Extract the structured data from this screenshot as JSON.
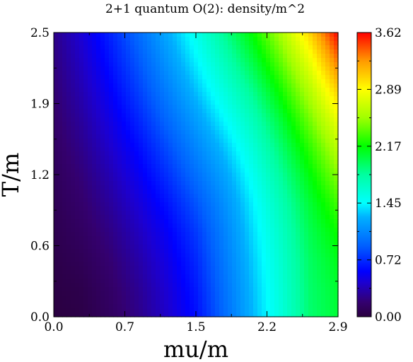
{
  "chart_data": {
    "type": "heatmap",
    "title": "2+1 quantum O(2): density/m^2",
    "xlabel": "mu/m",
    "ylabel": "T/m",
    "xlim": [
      0.0,
      2.9
    ],
    "ylim": [
      0.0,
      2.5
    ],
    "x_ticks": [
      "0.0",
      "0.7",
      "1.5",
      "2.2",
      "2.9"
    ],
    "y_ticks": [
      "0.0",
      "0.6",
      "1.2",
      "1.9",
      "2.5"
    ],
    "colorbar": {
      "range": [
        0.0,
        3.62
      ],
      "ticks": [
        "0.00",
        "0.72",
        "1.45",
        "2.17",
        "2.89",
        "3.62"
      ]
    },
    "x": [
      0.0,
      0.29,
      0.58,
      0.87,
      1.16,
      1.45,
      1.74,
      2.03,
      2.32,
      2.61,
      2.9
    ],
    "y": [
      0.0,
      0.25,
      0.5,
      0.75,
      1.0,
      1.25,
      1.5,
      1.75,
      2.0,
      2.25,
      2.5
    ],
    "z": [
      [
        0.0,
        0.03,
        0.12,
        0.25,
        0.42,
        0.62,
        0.95,
        1.28,
        1.58,
        1.92,
        2.05
      ],
      [
        0.02,
        0.05,
        0.15,
        0.28,
        0.45,
        0.66,
        0.98,
        1.3,
        1.6,
        1.93,
        2.07
      ],
      [
        0.04,
        0.09,
        0.19,
        0.33,
        0.5,
        0.71,
        1.02,
        1.33,
        1.63,
        1.95,
        2.12
      ],
      [
        0.06,
        0.13,
        0.24,
        0.39,
        0.56,
        0.77,
        1.06,
        1.37,
        1.67,
        1.99,
        2.2
      ],
      [
        0.08,
        0.17,
        0.3,
        0.46,
        0.64,
        0.86,
        1.12,
        1.42,
        1.73,
        2.05,
        2.32
      ],
      [
        0.1,
        0.21,
        0.36,
        0.54,
        0.74,
        0.97,
        1.21,
        1.5,
        1.82,
        2.15,
        2.48
      ],
      [
        0.13,
        0.26,
        0.43,
        0.62,
        0.84,
        1.08,
        1.32,
        1.6,
        1.93,
        2.28,
        2.65
      ],
      [
        0.16,
        0.31,
        0.5,
        0.71,
        0.95,
        1.19,
        1.45,
        1.72,
        2.06,
        2.44,
        2.85
      ],
      [
        0.19,
        0.36,
        0.57,
        0.8,
        1.05,
        1.31,
        1.58,
        1.86,
        2.22,
        2.62,
        3.08
      ],
      [
        0.22,
        0.41,
        0.64,
        0.88,
        1.15,
        1.42,
        1.71,
        2.02,
        2.4,
        2.82,
        3.35
      ],
      [
        0.25,
        0.46,
        0.7,
        0.96,
        1.24,
        1.52,
        1.84,
        2.18,
        2.58,
        3.05,
        3.62
      ]
    ]
  }
}
